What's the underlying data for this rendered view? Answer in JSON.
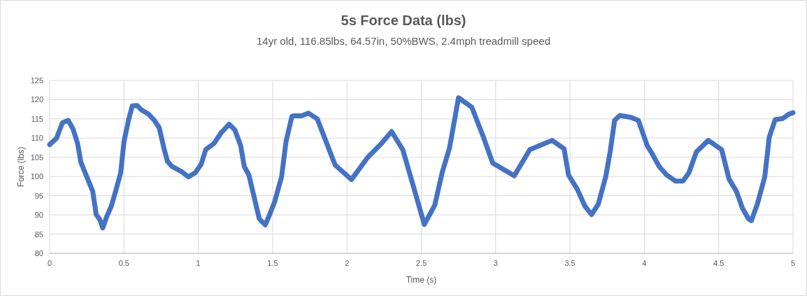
{
  "chart_data": {
    "type": "line",
    "title": "5s Force Data (lbs)",
    "subtitle": "14yr old, 116.85lbs, 64.57in, 50%BWS, 2.4mph treadmill speed",
    "xlabel": "Time (s)",
    "ylabel": "Force (lbs)",
    "xlim": [
      0,
      5
    ],
    "xticks": [
      0,
      0.5,
      1,
      1.5,
      2,
      2.5,
      3,
      3.5,
      4,
      4.5,
      5
    ],
    "ylim": [
      80,
      125
    ],
    "yticks": [
      80,
      85,
      90,
      95,
      100,
      105,
      110,
      115,
      120,
      125
    ],
    "grid": true,
    "marker": "none",
    "line_style": "solid",
    "series": [
      {
        "color": "#4472c4",
        "x": [
          0,
          0.047,
          0.086,
          0.125,
          0.157,
          0.188,
          0.21,
          0.25,
          0.29,
          0.313,
          0.337,
          0.357,
          0.384,
          0.415,
          0.447,
          0.478,
          0.5,
          0.533,
          0.556,
          0.588,
          0.619,
          0.666,
          0.705,
          0.737,
          0.768,
          0.792,
          0.823,
          0.886,
          0.933,
          0.98,
          1.019,
          1.05,
          1.105,
          1.152,
          1.207,
          1.246,
          1.285,
          1.309,
          1.34,
          1.37,
          1.41,
          1.45,
          1.48,
          1.513,
          1.56,
          1.59,
          1.63,
          1.64,
          1.695,
          1.74,
          1.8,
          1.92,
          2.03,
          2.14,
          2.23,
          2.3,
          2.375,
          2.45,
          2.52,
          2.59,
          2.64,
          2.69,
          2.75,
          2.84,
          2.92,
          2.98,
          3.125,
          3.23,
          3.33,
          3.38,
          3.46,
          3.49,
          3.55,
          3.6,
          3.645,
          3.69,
          3.74,
          3.77,
          3.8,
          3.835,
          3.91,
          3.96,
          4.02,
          4.05,
          4.1,
          4.15,
          4.21,
          4.26,
          4.3,
          4.35,
          4.43,
          4.52,
          4.57,
          4.62,
          4.66,
          4.7,
          4.72,
          4.76,
          4.81,
          4.84,
          4.88,
          4.93,
          4.97,
          5
        ],
        "values": [
          108.3,
          110,
          114,
          114.6,
          112.4,
          108.6,
          103.7,
          99.9,
          96.1,
          90.1,
          88.8,
          86.6,
          89.6,
          92.3,
          96.6,
          101,
          109.1,
          115.1,
          118.4,
          118.5,
          117.3,
          116.2,
          114.6,
          112.7,
          107.5,
          104,
          102.6,
          101.3,
          99.9,
          101,
          103.2,
          107,
          108.6,
          111.3,
          113.6,
          112.1,
          108,
          102.6,
          100.4,
          95.5,
          89,
          87.4,
          90.1,
          93.4,
          99.9,
          109.1,
          115.7,
          115.8,
          115.8,
          116.5,
          115,
          103,
          99.2,
          105,
          108.5,
          111.7,
          107,
          97,
          87.5,
          92.5,
          101,
          107.5,
          120.5,
          118,
          110,
          103.5,
          100.2,
          107,
          108.6,
          109.4,
          107.2,
          100.4,
          96.6,
          92.3,
          90.1,
          92.8,
          99.9,
          106.4,
          114.6,
          115.9,
          115.4,
          114.6,
          108,
          106.1,
          102.6,
          100.4,
          98.8,
          98.8,
          101,
          106.4,
          109.4,
          107,
          99.3,
          96.1,
          91.7,
          89,
          88.5,
          92.8,
          99.9,
          110.2,
          114.8,
          115.1,
          116.2,
          116.6
        ]
      }
    ]
  }
}
